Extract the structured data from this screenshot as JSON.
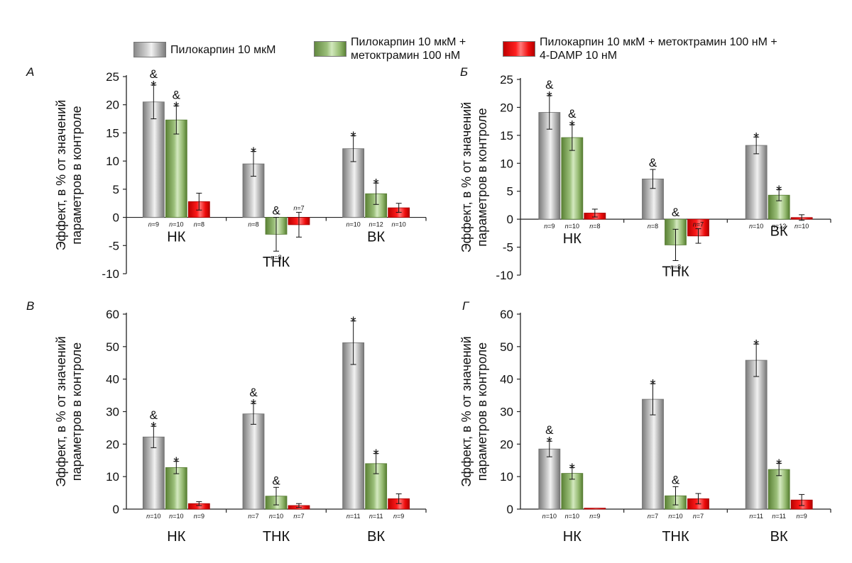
{
  "legend": {
    "items": [
      {
        "label": "Пилокарпин 10 мкМ",
        "swatch": "grey"
      },
      {
        "label": "Пилокарпин 10 мкМ +\nметоктрамин 100 нМ",
        "swatch": "green"
      },
      {
        "label": "Пилокарпин 10 мкМ + метоктрамин 100 нМ +\n4-DAMP 10 нМ",
        "swatch": "red"
      }
    ]
  },
  "colors": {
    "series1": "#b7b7b7",
    "series2": "#8db56a",
    "series3": "#e00000",
    "axis": "#222222"
  },
  "chart_data": [
    {
      "panel": "А",
      "type": "bar",
      "ylabel": "Эффект, в % от значений параметров в контроле",
      "ylim": [
        -10,
        25
      ],
      "yticks": [
        25,
        20,
        15,
        10,
        5,
        0,
        -5,
        -10
      ],
      "categories": [
        "НК",
        "ТНК",
        "ВК"
      ],
      "category_label_position": [
        "below-zero",
        "below-bars",
        "below-zero"
      ],
      "series": [
        {
          "values": [
            20.5,
            9.5,
            12.2
          ],
          "errors": [
            3.0,
            2.2,
            2.3
          ],
          "marks": [
            "*&",
            "*",
            "*"
          ],
          "n": [
            "9",
            "8",
            "10"
          ]
        },
        {
          "values": [
            17.3,
            -3.0,
            4.2
          ],
          "errors": [
            2.5,
            3.0,
            1.9
          ],
          "marks": [
            "*&",
            "&",
            "*"
          ],
          "n": [
            "10",
            "8",
            "12"
          ]
        },
        {
          "values": [
            2.8,
            -1.3,
            1.7
          ],
          "errors": [
            1.5,
            2.2,
            0.8
          ],
          "marks": [
            "",
            "",
            ""
          ],
          "n": [
            "8",
            "7",
            "10"
          ]
        }
      ]
    },
    {
      "panel": "Б",
      "type": "bar",
      "ylabel": "Эффект, в % от значений параметров в контроле",
      "ylim": [
        -10,
        25
      ],
      "yticks": [
        25,
        20,
        15,
        10,
        5,
        0,
        -5,
        -10
      ],
      "categories": [
        "НК",
        "ТНК",
        "ВК"
      ],
      "category_label_position": [
        "below-zero",
        "below-bars",
        "below-bars"
      ],
      "series": [
        {
          "values": [
            19.1,
            7.2,
            13.2
          ],
          "errors": [
            3.0,
            1.7,
            1.5
          ],
          "marks": [
            "*&",
            "&",
            "*"
          ],
          "n": [
            "9",
            "8",
            "10"
          ]
        },
        {
          "values": [
            14.6,
            -4.6,
            4.3
          ],
          "errors": [
            2.3,
            2.8,
            1.0
          ],
          "marks": [
            "*&",
            "&",
            "*"
          ],
          "n": [
            "10",
            "8",
            "12"
          ]
        },
        {
          "values": [
            1.1,
            -3.0,
            0.3
          ],
          "errors": [
            0.7,
            1.3,
            0.5
          ],
          "marks": [
            "",
            "",
            ""
          ],
          "n": [
            "8",
            "7",
            "10"
          ]
        }
      ]
    },
    {
      "panel": "В",
      "type": "bar",
      "ylabel": "Эффект, в % от значений параметров в контроле",
      "ylim": [
        0,
        60
      ],
      "yticks": [
        60,
        50,
        40,
        30,
        20,
        10,
        0
      ],
      "categories": [
        "НК",
        "ТНК",
        "ВК"
      ],
      "category_label_position": [
        "bottom",
        "bottom",
        "bottom"
      ],
      "series": [
        {
          "values": [
            22.2,
            29.3,
            51.2
          ],
          "errors": [
            3.3,
            3.2,
            6.7
          ],
          "marks": [
            "*&",
            "*&",
            "*"
          ],
          "n": [
            "10",
            "7",
            "11"
          ]
        },
        {
          "values": [
            12.8,
            4.0,
            14.0
          ],
          "errors": [
            1.9,
            2.7,
            3.1
          ],
          "marks": [
            "*",
            "&",
            "*"
          ],
          "n": [
            "10",
            "10",
            "11"
          ]
        },
        {
          "values": [
            1.7,
            1.1,
            3.2
          ],
          "errors": [
            0.6,
            0.6,
            1.5
          ],
          "marks": [
            "",
            "",
            ""
          ],
          "n": [
            "9",
            "7",
            "9"
          ]
        }
      ]
    },
    {
      "panel": "Г",
      "type": "bar",
      "ylabel": "Эффект, в % от значений параметров в контроле",
      "ylim": [
        0,
        60
      ],
      "yticks": [
        60,
        50,
        40,
        30,
        20,
        10,
        0
      ],
      "categories": [
        "НК",
        "ТНК",
        "ВК"
      ],
      "category_label_position": [
        "bottom",
        "bottom",
        "bottom"
      ],
      "series": [
        {
          "values": [
            18.5,
            33.8,
            45.8
          ],
          "errors": [
            2.4,
            4.8,
            5.0
          ],
          "marks": [
            "*&",
            "*",
            "*"
          ],
          "n": [
            "10",
            "7",
            "11"
          ]
        },
        {
          "values": [
            11.0,
            4.1,
            12.2
          ],
          "errors": [
            1.8,
            2.8,
            1.9
          ],
          "marks": [
            "*",
            "&",
            "*"
          ],
          "n": [
            "10",
            "10",
            "11"
          ]
        },
        {
          "values": [
            0.3,
            3.2,
            2.8
          ],
          "errors": [
            0,
            1.6,
            1.7
          ],
          "marks": [
            "",
            "",
            ""
          ],
          "n": [
            "9",
            "7",
            "9"
          ]
        }
      ]
    }
  ]
}
